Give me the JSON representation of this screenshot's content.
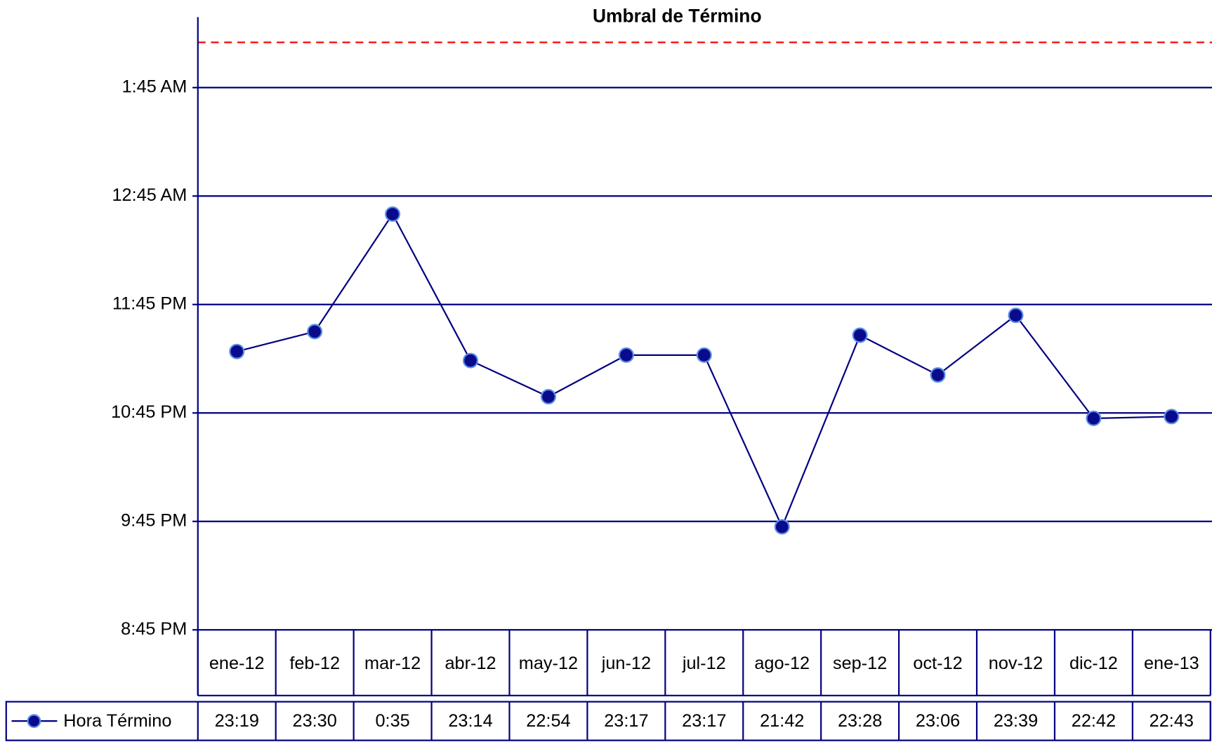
{
  "chart_data": {
    "type": "line",
    "title": "Umbral de Término",
    "categories": [
      "ene-12",
      "feb-12",
      "mar-12",
      "abr-12",
      "may-12",
      "jun-12",
      "jul-12",
      "ago-12",
      "sep-12",
      "oct-12",
      "nov-12",
      "dic-12",
      "ene-13"
    ],
    "series": [
      {
        "name": "Hora Término",
        "color": "#000080",
        "marker_color": "#0a0a8c",
        "values": [
          1399,
          1410,
          1475,
          1394,
          1374,
          1397,
          1397,
          1302,
          1408,
          1386,
          1419,
          1362,
          1363
        ],
        "value_labels": [
          "23:19",
          "23:30",
          "0:35",
          "23:14",
          "22:54",
          "23:17",
          "23:17",
          "21:42",
          "23:28",
          "23:06",
          "23:39",
          "22:42",
          "22:43"
        ]
      }
    ],
    "threshold": 1570,
    "threshold_color": "#ff0000",
    "ylim": [
      1245,
      1584
    ],
    "yticks": [
      {
        "value": 1245,
        "label": "8:45 PM"
      },
      {
        "value": 1305,
        "label": "9:45 PM"
      },
      {
        "value": 1365,
        "label": "10:45 PM"
      },
      {
        "value": 1425,
        "label": "11:45 PM"
      },
      {
        "value": 1485,
        "label": "12:45 AM"
      },
      {
        "value": 1545,
        "label": "1:45 AM"
      }
    ],
    "grid": true,
    "data_table": true
  }
}
